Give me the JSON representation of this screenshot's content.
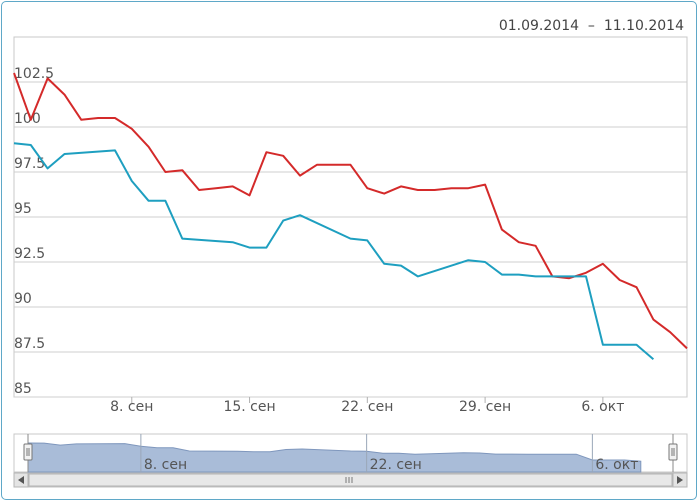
{
  "header": {
    "range_start": "01.09.2014",
    "range_sep": "–",
    "range_end": "11.10.2014"
  },
  "chart_data": {
    "type": "line",
    "title": "",
    "xlabel": "",
    "ylabel": "",
    "xlim": [
      "2014-09-01",
      "2014-10-11"
    ],
    "ylim": [
      85,
      105
    ],
    "yticks": [
      85,
      87.5,
      90,
      92.5,
      95,
      97.5,
      100,
      102.5
    ],
    "xticks": [
      {
        "date": "2014-09-08",
        "label": "8. сен"
      },
      {
        "date": "2014-09-15",
        "label": "15. сен"
      },
      {
        "date": "2014-09-22",
        "label": "22. сен"
      },
      {
        "date": "2014-09-29",
        "label": "29. сен"
      },
      {
        "date": "2014-10-06",
        "label": "6. окт"
      }
    ],
    "grid": true,
    "colors": {
      "red": "#d42a2a",
      "blue": "#1e9fc0",
      "navigator_fill": "#a9bcd8",
      "navigator_line": "#7f97bd",
      "grid": "#cfcfcf"
    },
    "series": [
      {
        "color": "#d42a2a",
        "points": [
          [
            "2014-09-01",
            103.0
          ],
          [
            "2014-09-02",
            100.4
          ],
          [
            "2014-09-03",
            102.7
          ],
          [
            "2014-09-04",
            101.8
          ],
          [
            "2014-09-05",
            100.4
          ],
          [
            "2014-09-06",
            100.5
          ],
          [
            "2014-09-07",
            100.5
          ],
          [
            "2014-09-08",
            99.9
          ],
          [
            "2014-09-09",
            98.9
          ],
          [
            "2014-09-10",
            97.5
          ],
          [
            "2014-09-11",
            97.6
          ],
          [
            "2014-09-12",
            96.5
          ],
          [
            "2014-09-13",
            96.6
          ],
          [
            "2014-09-14",
            96.7
          ],
          [
            "2014-09-15",
            96.2
          ],
          [
            "2014-09-16",
            98.6
          ],
          [
            "2014-09-17",
            98.4
          ],
          [
            "2014-09-18",
            97.3
          ],
          [
            "2014-09-19",
            97.9
          ],
          [
            "2014-09-20",
            97.9
          ],
          [
            "2014-09-21",
            97.9
          ],
          [
            "2014-09-22",
            96.6
          ],
          [
            "2014-09-23",
            96.3
          ],
          [
            "2014-09-24",
            96.7
          ],
          [
            "2014-09-25",
            96.5
          ],
          [
            "2014-09-26",
            96.5
          ],
          [
            "2014-09-27",
            96.6
          ],
          [
            "2014-09-28",
            96.6
          ],
          [
            "2014-09-29",
            96.8
          ],
          [
            "2014-09-30",
            94.3
          ],
          [
            "2014-10-01",
            93.6
          ],
          [
            "2014-10-02",
            93.4
          ],
          [
            "2014-10-03",
            91.7
          ],
          [
            "2014-10-04",
            91.6
          ],
          [
            "2014-10-05",
            91.9
          ],
          [
            "2014-10-06",
            92.4
          ],
          [
            "2014-10-07",
            91.5
          ],
          [
            "2014-10-08",
            91.1
          ],
          [
            "2014-10-09",
            89.3
          ],
          [
            "2014-10-10",
            88.6
          ],
          [
            "2014-10-11",
            87.7
          ]
        ]
      },
      {
        "color": "#1e9fc0",
        "points": [
          [
            "2014-09-01",
            99.1
          ],
          [
            "2014-09-02",
            99.0
          ],
          [
            "2014-09-03",
            97.7
          ],
          [
            "2014-09-04",
            98.5
          ],
          [
            "2014-09-07",
            98.7
          ],
          [
            "2014-09-08",
            97.0
          ],
          [
            "2014-09-09",
            95.9
          ],
          [
            "2014-09-10",
            95.9
          ],
          [
            "2014-09-11",
            93.8
          ],
          [
            "2014-09-14",
            93.6
          ],
          [
            "2014-09-15",
            93.3
          ],
          [
            "2014-09-16",
            93.3
          ],
          [
            "2014-09-17",
            94.8
          ],
          [
            "2014-09-18",
            95.1
          ],
          [
            "2014-09-21",
            93.8
          ],
          [
            "2014-09-22",
            93.7
          ],
          [
            "2014-09-23",
            92.4
          ],
          [
            "2014-09-24",
            92.3
          ],
          [
            "2014-09-25",
            91.7
          ],
          [
            "2014-09-28",
            92.6
          ],
          [
            "2014-09-29",
            92.5
          ],
          [
            "2014-09-30",
            91.8
          ],
          [
            "2014-10-01",
            91.8
          ],
          [
            "2014-10-02",
            91.7
          ],
          [
            "2014-10-05",
            91.7
          ],
          [
            "2014-10-06",
            87.9
          ],
          [
            "2014-10-07",
            87.9
          ],
          [
            "2014-10-08",
            87.9
          ],
          [
            "2014-10-09",
            87.1
          ]
        ]
      }
    ],
    "navigator": {
      "xticks": [
        {
          "date": "2014-09-08",
          "label": "8. сен"
        },
        {
          "date": "2014-09-22",
          "label": "22. сен"
        },
        {
          "date": "2014-10-06",
          "label": "6. окт"
        }
      ]
    }
  }
}
